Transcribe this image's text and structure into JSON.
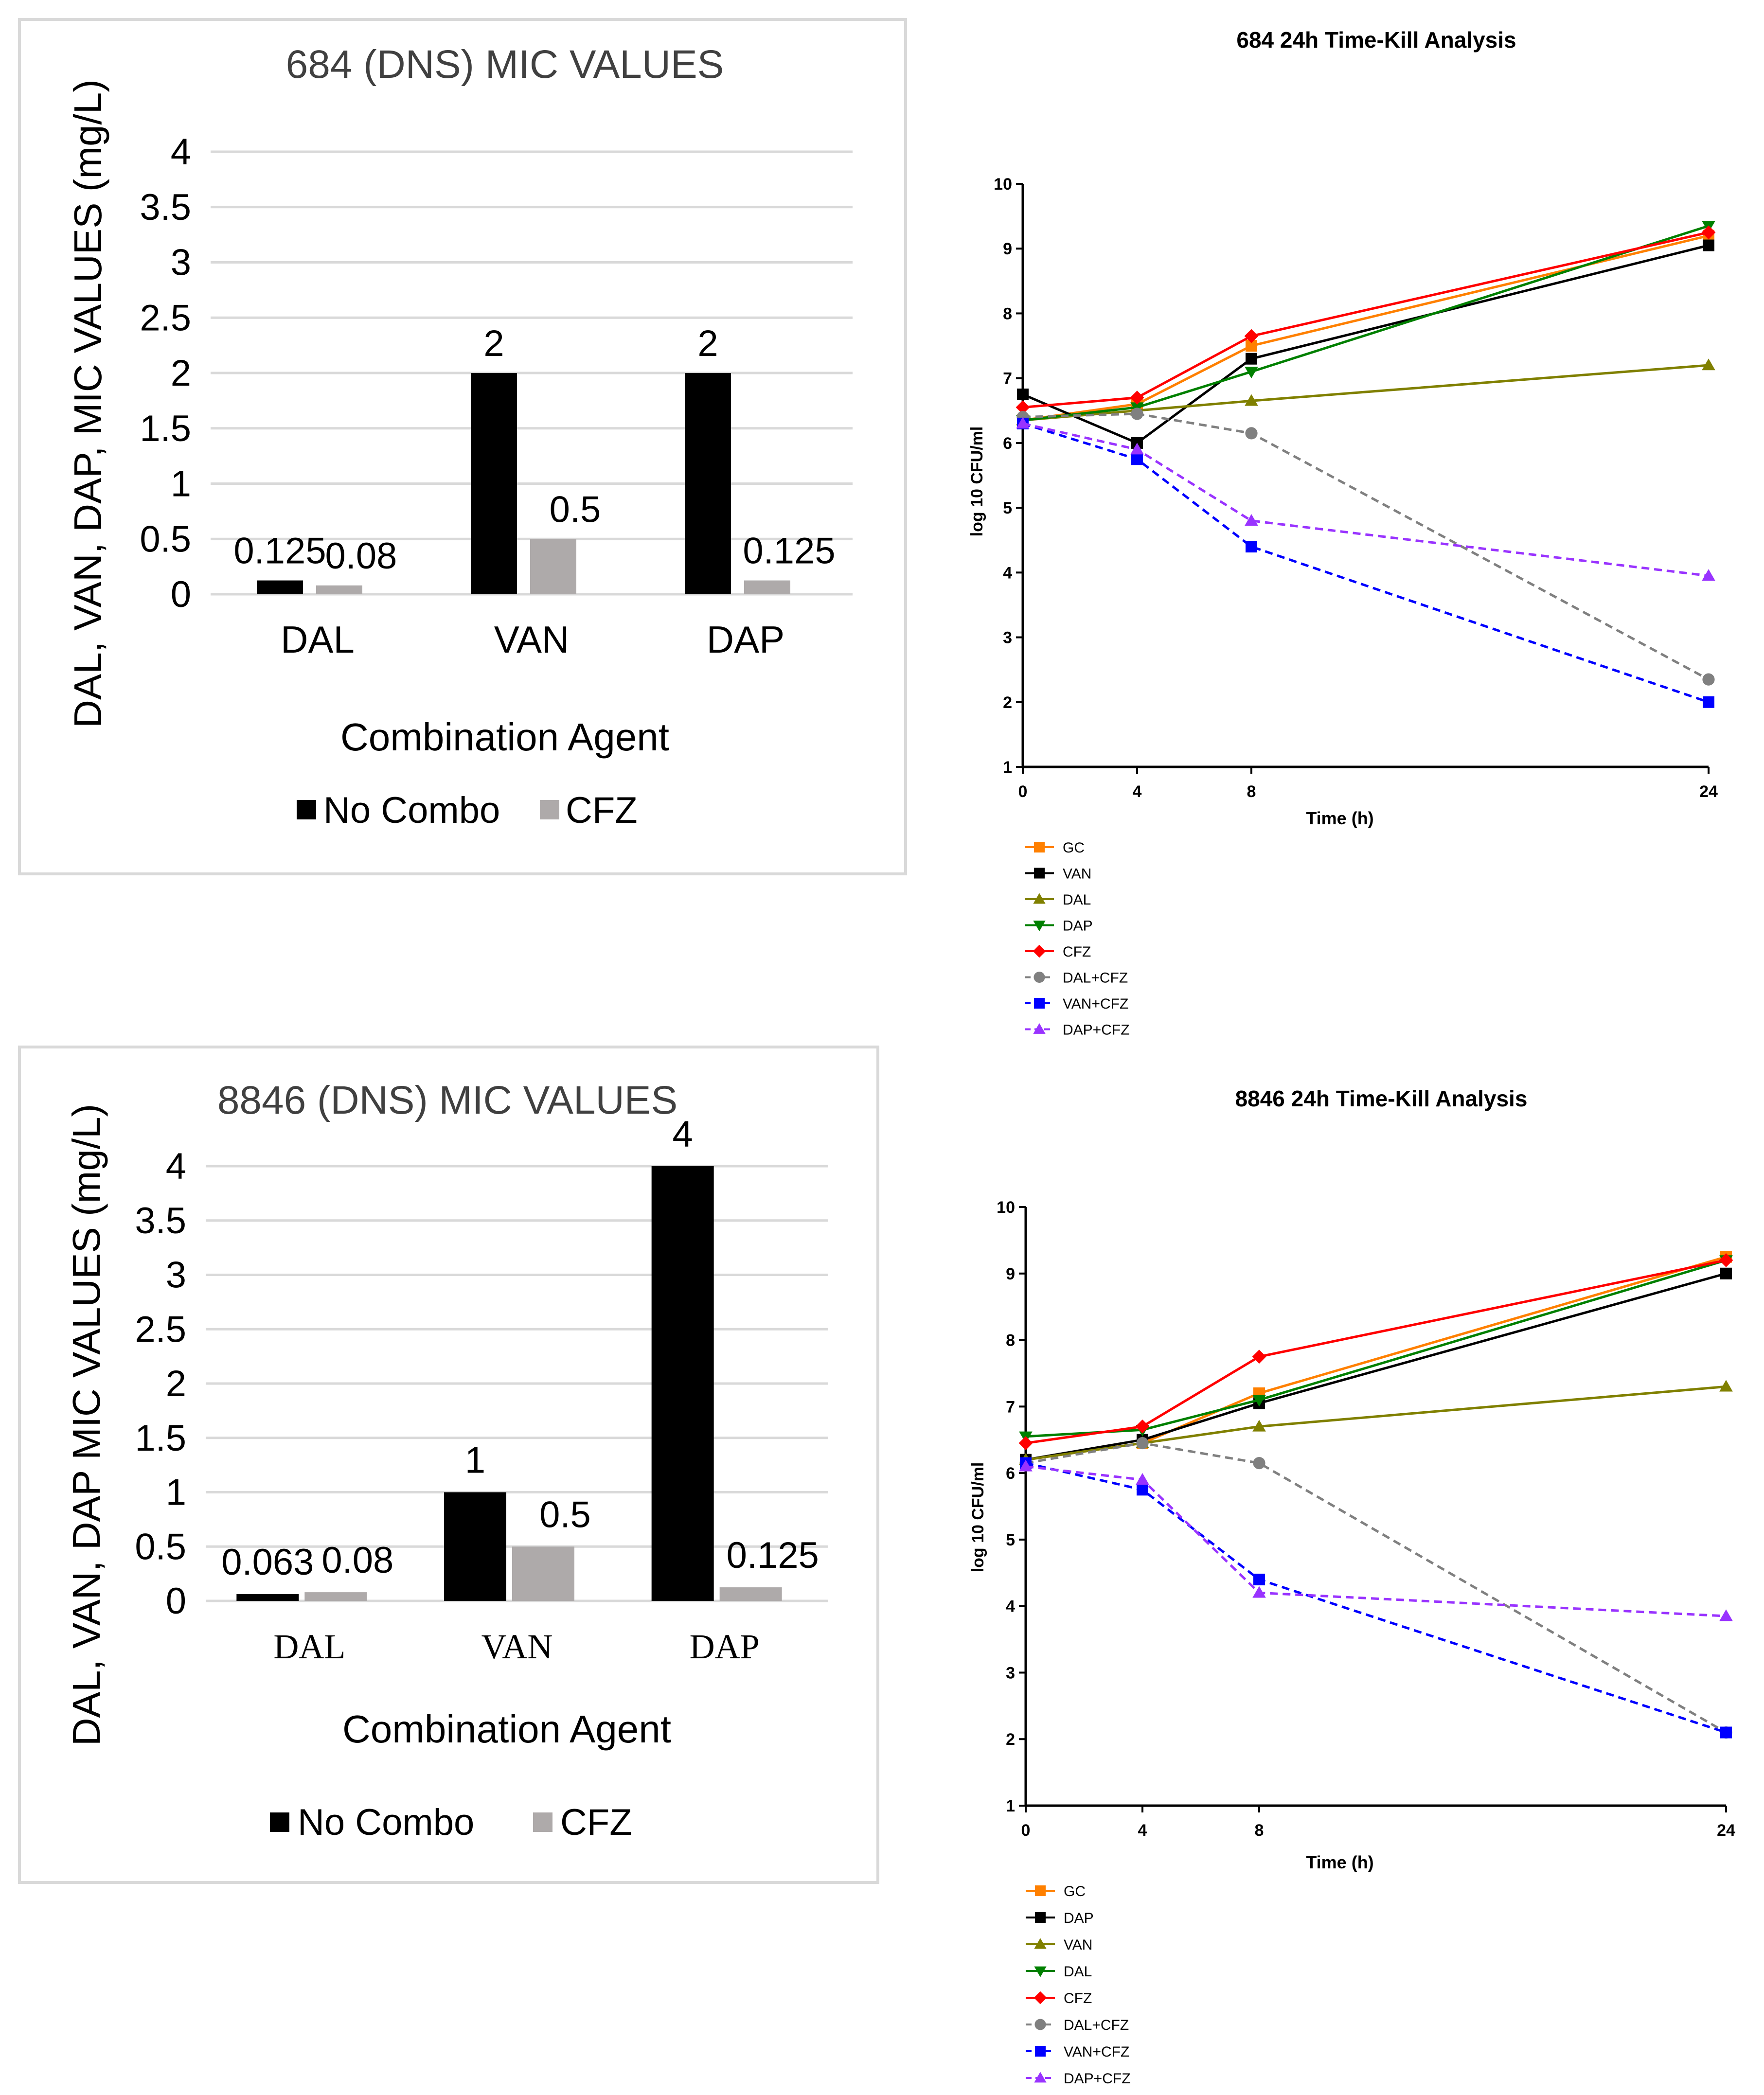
{
  "chart_data": [
    {
      "type": "bar",
      "title": "684 (DNS) MIC VALUES",
      "xlabel": "Combination Agent",
      "ylabel": "DAL, VAN, DAP, MIC VALUES (mg/L)",
      "ylim": [
        0,
        4
      ],
      "yticks": [
        "0",
        "0.5",
        "1",
        "1.5",
        "2",
        "2.5",
        "3",
        "3.5",
        "4"
      ],
      "categories": [
        "DAL",
        "VAN",
        "DAP"
      ],
      "series": [
        {
          "name": "No Combo",
          "color": "#000000",
          "values": [
            0.125,
            2,
            2
          ],
          "labels": [
            "0.125",
            "2",
            "2"
          ]
        },
        {
          "name": "CFZ",
          "color": "#aeaaaa",
          "values": [
            0.08,
            0.5,
            0.125
          ],
          "labels": [
            "0.08",
            "0.5",
            "0.125"
          ]
        }
      ]
    },
    {
      "type": "line",
      "title": "684 24h Time-Kill Analysis",
      "xlabel": "Time (h)",
      "ylabel": "log 10 CFU/ml",
      "x": [
        0,
        4,
        8,
        24
      ],
      "xlim": [
        0,
        24
      ],
      "ylim": [
        1,
        10
      ],
      "xticks": [
        "0",
        "4",
        "8",
        "24"
      ],
      "yticks": [
        "1",
        "2",
        "3",
        "4",
        "5",
        "6",
        "7",
        "8",
        "9",
        "10"
      ],
      "series": [
        {
          "name": "GC",
          "color": "#ff8000",
          "marker": "square",
          "dash": false,
          "values": [
            6.35,
            6.6,
            7.5,
            9.2
          ]
        },
        {
          "name": "VAN",
          "color": "#000000",
          "marker": "square",
          "dash": false,
          "values": [
            6.75,
            6.0,
            7.3,
            9.05
          ]
        },
        {
          "name": "DAL",
          "color": "#808000",
          "marker": "triangle-up",
          "dash": false,
          "values": [
            6.35,
            6.5,
            6.65,
            7.2
          ]
        },
        {
          "name": "DAP",
          "color": "#008000",
          "marker": "triangle-down",
          "dash": false,
          "values": [
            6.35,
            6.55,
            7.1,
            9.35
          ]
        },
        {
          "name": "CFZ",
          "color": "#ff0000",
          "marker": "diamond",
          "dash": false,
          "values": [
            6.55,
            6.7,
            7.65,
            9.25
          ]
        },
        {
          "name": "DAL+CFZ",
          "color": "#808080",
          "marker": "circle",
          "dash": true,
          "values": [
            6.4,
            6.45,
            6.15,
            2.35
          ]
        },
        {
          "name": "VAN+CFZ",
          "color": "#0000ff",
          "marker": "square",
          "dash": true,
          "values": [
            6.3,
            5.75,
            4.4,
            2.0
          ]
        },
        {
          "name": "DAP+CFZ",
          "color": "#9933ff",
          "marker": "triangle-up",
          "dash": true,
          "values": [
            6.3,
            5.9,
            4.8,
            3.95
          ]
        }
      ]
    },
    {
      "type": "bar",
      "title": "8846 (DNS) MIC VALUES",
      "xlabel": "Combination Agent",
      "ylabel": "DAL, VAN, DAP MIC VALUES (mg/L)",
      "ylim": [
        0,
        4
      ],
      "yticks": [
        "0",
        "0.5",
        "1",
        "1.5",
        "2",
        "2.5",
        "3",
        "3.5",
        "4"
      ],
      "categories": [
        "DAL",
        "VAN",
        "DAP"
      ],
      "series": [
        {
          "name": "No Combo",
          "color": "#000000",
          "values": [
            0.063,
            1,
            4
          ],
          "labels": [
            "0.063",
            "1",
            "4"
          ]
        },
        {
          "name": "CFZ",
          "color": "#aeaaaa",
          "values": [
            0.08,
            0.5,
            0.125
          ],
          "labels": [
            "0.08",
            "0.5",
            "0.125"
          ]
        }
      ]
    },
    {
      "type": "line",
      "title": "8846 24h Time-Kill Analysis",
      "xlabel": "Time (h)",
      "ylabel": "log 10 CFU/ml",
      "x": [
        0,
        4,
        8,
        24
      ],
      "xlim": [
        0,
        24
      ],
      "ylim": [
        1,
        10
      ],
      "xticks": [
        "0",
        "4",
        "8",
        "24"
      ],
      "yticks": [
        "1",
        "2",
        "3",
        "4",
        "5",
        "6",
        "7",
        "8",
        "9",
        "10"
      ],
      "series": [
        {
          "name": "GC",
          "color": "#ff8000",
          "marker": "square",
          "dash": false,
          "values": [
            6.2,
            6.45,
            7.2,
            9.25
          ]
        },
        {
          "name": "DAP",
          "color": "#000000",
          "marker": "square",
          "dash": false,
          "values": [
            6.2,
            6.5,
            7.05,
            9.0
          ]
        },
        {
          "name": "VAN",
          "color": "#808000",
          "marker": "triangle-up",
          "dash": false,
          "values": [
            6.2,
            6.45,
            6.7,
            7.3
          ]
        },
        {
          "name": "DAL",
          "color": "#008000",
          "marker": "triangle-down",
          "dash": false,
          "values": [
            6.55,
            6.65,
            7.1,
            9.2
          ]
        },
        {
          "name": "CFZ",
          "color": "#ff0000",
          "marker": "diamond",
          "dash": false,
          "values": [
            6.45,
            6.7,
            7.75,
            9.2
          ]
        },
        {
          "name": "DAL+CFZ",
          "color": "#808080",
          "marker": "circle",
          "dash": true,
          "values": [
            6.15,
            6.45,
            6.15,
            2.1
          ]
        },
        {
          "name": "VAN+CFZ",
          "color": "#0000ff",
          "marker": "square",
          "dash": true,
          "values": [
            6.15,
            5.75,
            4.4,
            2.1
          ]
        },
        {
          "name": "DAP+CFZ",
          "color": "#9933ff",
          "marker": "triangle-up",
          "dash": true,
          "values": [
            6.1,
            5.9,
            4.2,
            3.85
          ]
        }
      ]
    }
  ]
}
